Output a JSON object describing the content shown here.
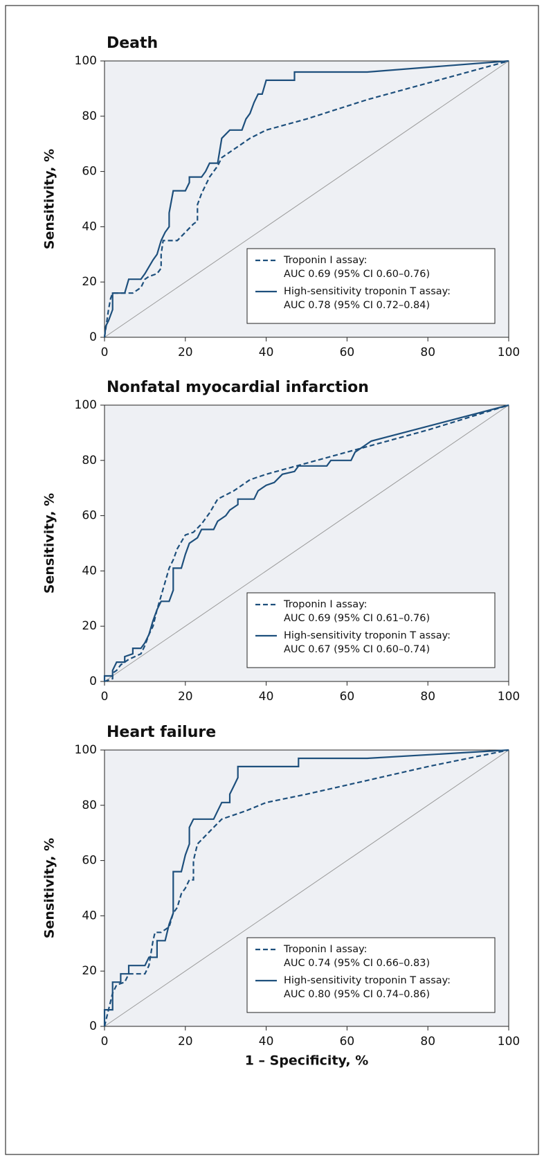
{
  "chart_data": [
    {
      "type": "line",
      "title": "Death",
      "ylabel": "Sensitivity, %",
      "xlim": [
        0,
        100
      ],
      "ylim": [
        0,
        100
      ],
      "xticks": [
        0,
        20,
        40,
        60,
        80,
        100
      ],
      "yticks": [
        0,
        20,
        40,
        60,
        80,
        100
      ],
      "legend": "lower right",
      "series": [
        {
          "name": "Troponin I assay:",
          "auc": "AUC 0.69 (95% CI 0.60–0.76)",
          "color": "#1d4f7c",
          "line_style": "dashed",
          "x": [
            0,
            0.5,
            1,
            1.5,
            2,
            4,
            7,
            9,
            10,
            11,
            13,
            14,
            14,
            14.5,
            18,
            20,
            22,
            23,
            23,
            24,
            26,
            28,
            29,
            33,
            36,
            40,
            50,
            65,
            80,
            100
          ],
          "values": [
            0,
            5,
            10,
            14,
            16,
            16,
            16,
            18,
            21,
            22,
            23,
            25,
            30,
            35,
            35,
            38,
            41,
            42,
            48,
            52,
            58,
            62,
            65,
            69,
            72,
            75,
            79,
            86,
            92,
            100
          ]
        },
        {
          "name": "High-sensitivity troponin T assay:",
          "auc": "AUC 0.78 (95% CI 0.72–0.84)",
          "color": "#1d4f7c",
          "line_style": "solid",
          "x": [
            0,
            0.3,
            1,
            2,
            2,
            3,
            5,
            6,
            9,
            10,
            12,
            13,
            14,
            15,
            16,
            16,
            17,
            20,
            21,
            21,
            24,
            25,
            26,
            28,
            29,
            31,
            34,
            35,
            36,
            37,
            38,
            39,
            40,
            47,
            47,
            65,
            100
          ],
          "values": [
            0,
            4,
            6,
            10,
            16,
            16,
            16,
            21,
            21,
            23,
            28,
            30,
            35,
            38,
            40,
            45,
            53,
            53,
            56,
            58,
            58,
            60,
            63,
            63,
            72,
            75,
            75,
            79,
            81,
            85,
            88,
            88,
            93,
            93,
            96,
            96,
            100
          ]
        }
      ]
    },
    {
      "type": "line",
      "title": "Nonfatal myocardial infarction",
      "ylabel": "Sensitivity, %",
      "xlim": [
        0,
        100
      ],
      "ylim": [
        0,
        100
      ],
      "xticks": [
        0,
        20,
        40,
        60,
        80,
        100
      ],
      "yticks": [
        0,
        20,
        40,
        60,
        80,
        100
      ],
      "legend": "lower right",
      "series": [
        {
          "name": "Troponin I assay:",
          "auc": "AUC 0.69 (95% CI 0.61–0.76)",
          "color": "#1d4f7c",
          "line_style": "dashed",
          "x": [
            0,
            2,
            2,
            3,
            4,
            6,
            9,
            10,
            11,
            12,
            13,
            14,
            15,
            16,
            17,
            18,
            20,
            22,
            24,
            26,
            28,
            32,
            36,
            40,
            50,
            60,
            70,
            80,
            100
          ],
          "values": [
            0,
            1,
            3,
            4,
            6,
            8,
            10,
            13,
            17,
            20,
            26,
            31,
            36,
            41,
            44,
            48,
            53,
            54,
            57,
            61,
            66,
            69,
            73,
            75,
            79,
            83,
            87,
            91,
            100
          ]
        },
        {
          "name": "High-sensitivity troponin T assay:",
          "auc": "AUC 0.67 (95% CI 0.60–0.74)",
          "color": "#1d4f7c",
          "line_style": "solid",
          "x": [
            0,
            0,
            2,
            2,
            3,
            5,
            5,
            7,
            7,
            9,
            10,
            11,
            12,
            13,
            14,
            16,
            17,
            17,
            19,
            20,
            21,
            23,
            24,
            27,
            28,
            30,
            31,
            33,
            33,
            37,
            38,
            40,
            42,
            44,
            47,
            48,
            55,
            56,
            61,
            62,
            64,
            66,
            100
          ],
          "values": [
            0,
            2,
            2,
            4,
            7,
            7,
            9,
            10,
            12,
            12,
            14,
            17,
            22,
            26,
            29,
            29,
            33,
            41,
            41,
            46,
            50,
            52,
            55,
            55,
            58,
            60,
            62,
            64,
            66,
            66,
            69,
            71,
            72,
            75,
            76,
            78,
            78,
            80,
            80,
            83,
            85,
            87,
            100
          ]
        }
      ]
    },
    {
      "type": "line",
      "title": "Heart failure",
      "ylabel": "Sensitivity, %",
      "xlabel": "1 – Specificity, %",
      "xlim": [
        0,
        100
      ],
      "ylim": [
        0,
        100
      ],
      "xticks": [
        0,
        20,
        40,
        60,
        80,
        100
      ],
      "yticks": [
        0,
        20,
        40,
        60,
        80,
        100
      ],
      "legend": "lower right",
      "series": [
        {
          "name": "Troponin I assay:",
          "auc": "AUC 0.74 (95% CI 0.66–0.83)",
          "color": "#1d4f7c",
          "line_style": "dashed",
          "x": [
            0,
            0.5,
            1,
            2,
            3,
            5,
            6,
            10,
            11,
            12,
            12.5,
            14,
            16,
            17,
            18,
            19,
            20,
            21,
            22,
            22,
            23,
            25,
            27,
            29,
            35,
            40,
            50,
            65,
            80,
            100
          ],
          "values": [
            0,
            3,
            6,
            12,
            15,
            16,
            19,
            19,
            22,
            31,
            34,
            34,
            36,
            41,
            43,
            48,
            50,
            53,
            53,
            60,
            66,
            69,
            72,
            75,
            78,
            81,
            84,
            89,
            94,
            100
          ]
        },
        {
          "name": "High-sensitivity troponin T assay:",
          "auc": "AUC 0.80 (95% CI 0.74–0.86)",
          "color": "#1d4f7c",
          "line_style": "solid",
          "x": [
            0,
            0,
            2,
            2,
            4,
            4,
            6,
            6,
            10,
            11,
            13,
            13,
            15,
            16,
            17,
            17,
            19,
            20,
            21,
            21,
            22,
            27,
            28,
            29,
            31,
            31,
            32,
            33,
            33,
            48,
            48,
            65,
            100
          ],
          "values": [
            0,
            6,
            6,
            16,
            16,
            19,
            19,
            22,
            22,
            25,
            25,
            31,
            31,
            37,
            41,
            56,
            56,
            62,
            66,
            72,
            75,
            75,
            78,
            81,
            81,
            84,
            87,
            90,
            94,
            94,
            97,
            97,
            100
          ]
        }
      ]
    }
  ]
}
